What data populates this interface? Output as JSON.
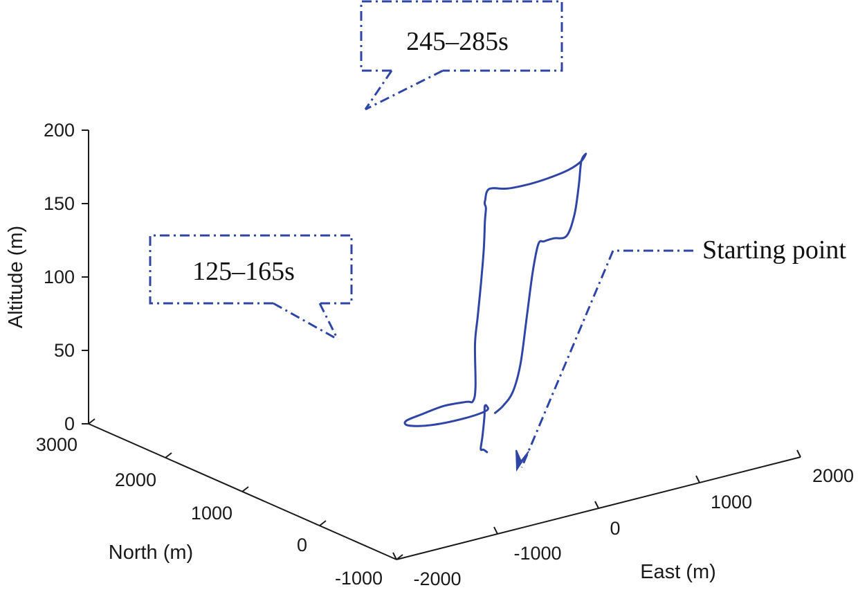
{
  "chart_data": {
    "type": "line",
    "dimensions": "3d",
    "colors": {
      "trajectory": "#2f45a6",
      "axes": "#1a1a1a"
    },
    "axes": {
      "x": {
        "label": "East (m)",
        "range": [
          -2000,
          2000
        ],
        "ticks": [
          "-2000",
          "-1000",
          "0",
          "1000",
          "2000"
        ]
      },
      "y": {
        "label": "North (m)",
        "range": [
          -1000,
          3000
        ],
        "ticks": [
          "-1000",
          "0",
          "1000",
          "2000",
          "3000"
        ]
      },
      "z": {
        "label": "Altitude (m)",
        "range": [
          0,
          200
        ],
        "ticks": [
          "0",
          "50",
          "100",
          "150",
          "200"
        ]
      }
    },
    "grid": false,
    "series": [
      {
        "points": [
          [
            500,
            1000,
            10
          ],
          [
            550,
            960,
            15
          ],
          [
            600,
            900,
            25
          ],
          [
            630,
            840,
            45
          ],
          [
            650,
            780,
            80
          ],
          [
            660,
            720,
            110
          ],
          [
            670,
            660,
            130
          ],
          [
            680,
            600,
            133
          ],
          [
            700,
            500,
            137
          ],
          [
            750,
            400,
            140
          ],
          [
            790,
            350,
            155
          ],
          [
            810,
            320,
            175
          ],
          [
            820,
            300,
            192
          ],
          [
            790,
            200,
            200
          ],
          [
            650,
            80,
            200
          ],
          [
            450,
            -20,
            200
          ],
          [
            200,
            -80,
            200
          ],
          [
            0,
            -100,
            200
          ],
          [
            -200,
            -80,
            200
          ],
          [
            -320,
            0,
            200
          ],
          [
            -300,
            80,
            190
          ],
          [
            -250,
            150,
            185
          ],
          [
            -200,
            200,
            180
          ],
          [
            -180,
            240,
            170
          ],
          [
            -160,
            280,
            150
          ],
          [
            -150,
            330,
            125
          ],
          [
            -130,
            400,
            100
          ],
          [
            -110,
            460,
            80
          ],
          [
            -90,
            480,
            50
          ],
          [
            -100,
            500,
            40
          ],
          [
            -150,
            520,
            40
          ],
          [
            -350,
            550,
            40
          ],
          [
            -600,
            500,
            40
          ],
          [
            -800,
            450,
            40
          ],
          [
            -850,
            350,
            40
          ],
          [
            -700,
            250,
            40
          ],
          [
            -400,
            220,
            40
          ],
          [
            -150,
            260,
            40
          ],
          [
            -80,
            350,
            40
          ],
          [
            -60,
            400,
            38
          ],
          [
            -40,
            430,
            30
          ],
          [
            -30,
            470,
            15
          ],
          [
            0,
            530,
            5
          ],
          [
            50,
            560,
            3
          ],
          [
            100,
            580,
            0
          ]
        ]
      }
    ],
    "annotations": [
      {
        "text": "245–285s",
        "x": -150,
        "y": 0,
        "z": 200
      },
      {
        "text": "125–165s",
        "x": -350,
        "y": 550,
        "z": 40
      },
      {
        "text": "Starting point",
        "x": 100,
        "y": 580,
        "z": 0
      }
    ]
  }
}
